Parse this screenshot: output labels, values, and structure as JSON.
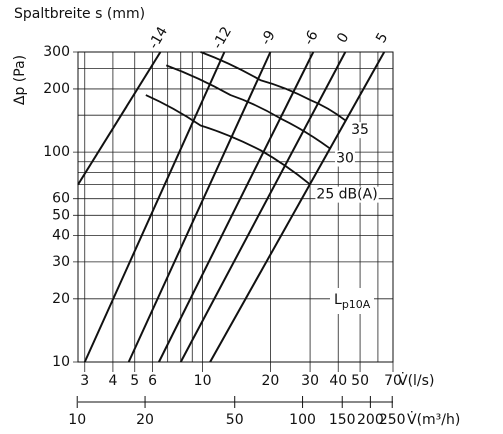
{
  "chart_data": {
    "type": "line",
    "title": "Spaltbreite s (mm)",
    "y_label": "Δp (Pa)",
    "x_label": "V̇(l/s)",
    "x2_label": "V̇(m³/h)",
    "log_x": true,
    "log_y": true,
    "grid": true,
    "xlim": [
      2.8,
      70
    ],
    "xticks": [
      3,
      4,
      5,
      6,
      10,
      20,
      30,
      40,
      50,
      70
    ],
    "xminor": [
      7,
      8,
      9,
      60
    ],
    "x2lim": [
      10.08,
      252
    ],
    "x2ticks": [
      10,
      20,
      50,
      100,
      150,
      200,
      250
    ],
    "ylim": [
      10,
      300
    ],
    "yticks": [
      10,
      20,
      30,
      40,
      50,
      60,
      100,
      200,
      300
    ],
    "yminor": [
      70,
      80,
      90,
      150,
      250
    ],
    "series": [
      {
        "name": "-14",
        "color": "#111111",
        "x": [
          2.8,
          6.5
        ],
        "values": [
          70,
          300
        ]
      },
      {
        "name": "-12",
        "color": "#111111",
        "x": [
          3,
          12.5
        ],
        "values": [
          10,
          300
        ]
      },
      {
        "name": "-9",
        "color": "#111111",
        "x": [
          4.7,
          20
        ],
        "values": [
          10,
          300
        ]
      },
      {
        "name": "-6",
        "color": "#111111",
        "x": [
          6.4,
          31
        ],
        "values": [
          10,
          300
        ]
      },
      {
        "name": "0",
        "color": "#111111",
        "x": [
          8,
          43
        ],
        "values": [
          10,
          300
        ]
      },
      {
        "name": "5",
        "color": "#111111",
        "x": [
          10.8,
          64
        ],
        "values": [
          10,
          300
        ]
      }
    ],
    "sound_curves": [
      {
        "name": "35",
        "color": "#111111",
        "x": [
          9.8,
          18.1,
          30.1,
          42.9
        ],
        "values": [
          300,
          220,
          177,
          142
        ]
      },
      {
        "name": "30",
        "color": "#111111",
        "x": [
          6.9,
          13.3,
          22.1,
          36.8
        ],
        "values": [
          259,
          187,
          145,
          104
        ]
      },
      {
        "name": "25 dB(A)",
        "color": "#111111",
        "x": [
          5.6,
          9.8,
          18.1,
          30.1
        ],
        "values": [
          187,
          134,
          102,
          70
        ]
      }
    ],
    "annotation": {
      "text": "L",
      "sub": "p10A"
    }
  }
}
